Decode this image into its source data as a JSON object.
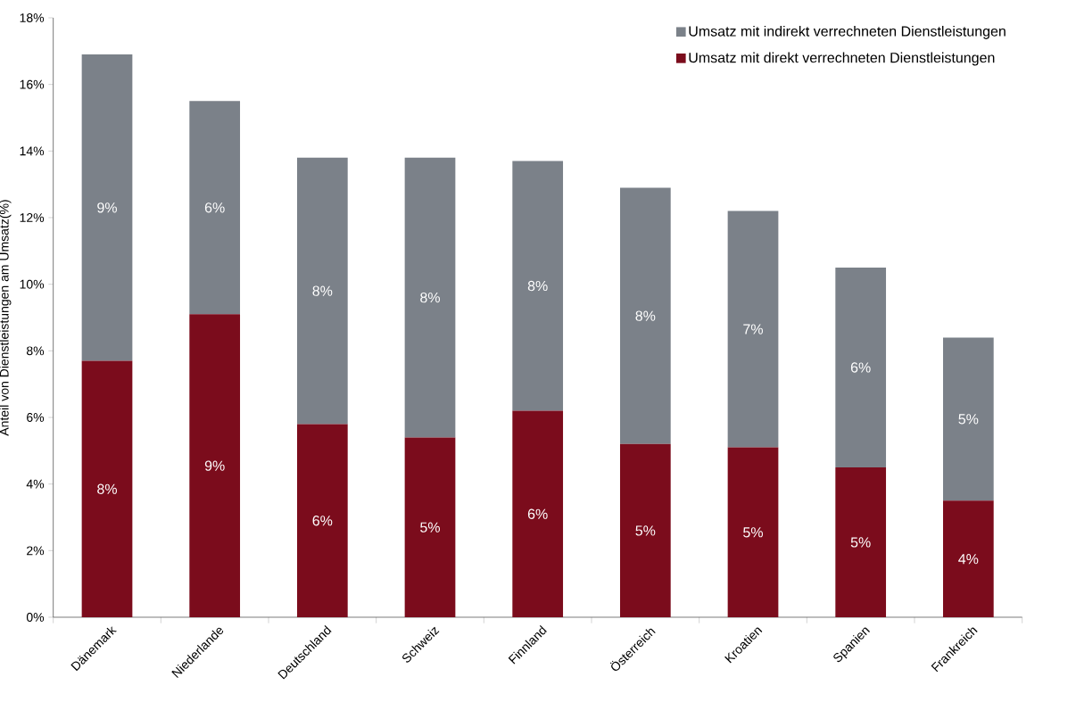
{
  "chart_data": {
    "type": "bar",
    "stacked": true,
    "ylabel": "Anteil von Dienstleistungen  am Umsatz(%)",
    "categories": [
      "Dänemark",
      "Niederlande",
      "Deutschland",
      "Schweiz",
      "Finnland",
      "Österreich",
      "Kroatien",
      "Spanien",
      "Frankreich"
    ],
    "series": [
      {
        "name": "Umsatz mit direkt verrechneten Dienstleistungen",
        "color": "#7b0c1c",
        "values": [
          7.7,
          9.1,
          5.8,
          5.4,
          6.2,
          5.2,
          5.1,
          4.5,
          3.5
        ],
        "value_labels": [
          "8%",
          "9%",
          "6%",
          "5%",
          "6%",
          "5%",
          "5%",
          "5%",
          "4%"
        ]
      },
      {
        "name": "Umsatz mit indirekt verrechneten Dienstleistungen",
        "color": "#7b8189",
        "values": [
          9.2,
          6.4,
          8.0,
          8.4,
          7.5,
          7.7,
          7.1,
          6.0,
          4.9
        ],
        "value_labels": [
          "9%",
          "6%",
          "8%",
          "8%",
          "8%",
          "8%",
          "7%",
          "6%",
          "5%"
        ]
      }
    ],
    "ylim": [
      0,
      18
    ],
    "yticks": [
      {
        "value": 0,
        "label": "0%"
      },
      {
        "value": 2,
        "label": "2%"
      },
      {
        "value": 4,
        "label": "4%"
      },
      {
        "value": 6,
        "label": "6%"
      },
      {
        "value": 8,
        "label": "8%"
      },
      {
        "value": 10,
        "label": "10%"
      },
      {
        "value": 12,
        "label": "12%"
      },
      {
        "value": 14,
        "label": "14%"
      },
      {
        "value": 16,
        "label": "16%"
      },
      {
        "value": 18,
        "label": "18%"
      }
    ],
    "grid": false,
    "legend": "top right"
  }
}
